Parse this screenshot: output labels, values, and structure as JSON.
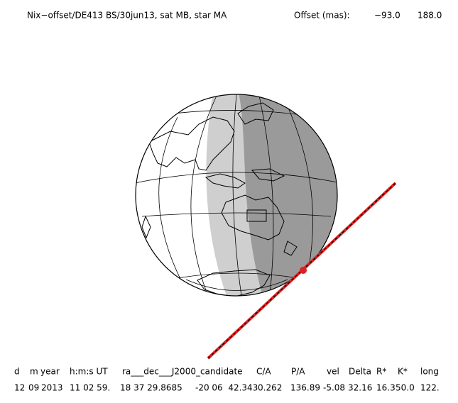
{
  "header": {
    "title": "Nix−offset/DE413 BS/30jun13, sat MB, star MA",
    "offset_label": "Offset (mas):",
    "offset_x": "−93.0",
    "offset_y": "188.0"
  },
  "table": {
    "headers": [
      "d",
      "m",
      "year",
      "h:m:s UT",
      "ra___dec___J2000_candidate",
      "C/A",
      "P/A",
      "vel",
      "Delta",
      "R*",
      "K*",
      "long"
    ],
    "row": [
      "12",
      "09",
      "2013",
      "11 02 59.",
      "18 37 29.8685",
      "-20 06  42.343",
      "0.262",
      "136.89",
      "-5.08",
      "32.16",
      "16.3",
      "50.0",
      "122."
    ]
  }
}
